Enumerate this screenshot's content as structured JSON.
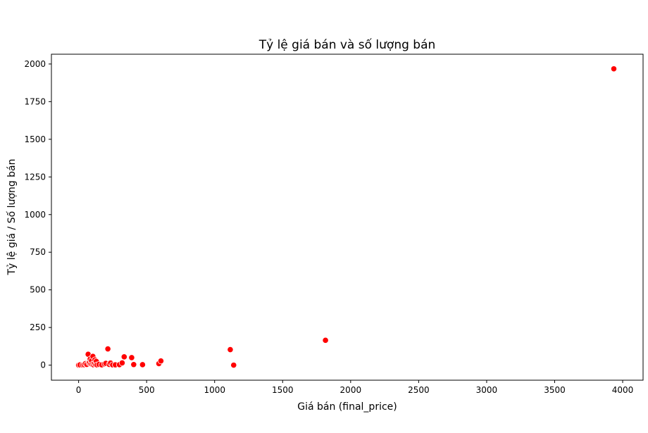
{
  "chart_data": {
    "type": "scatter",
    "title": "Tỷ lệ giá bán và số lượng bán",
    "xlabel": "Giá bán (final_price)",
    "ylabel": "Tỷ lệ giá / Số lượng bán",
    "xlim": [
      -200,
      4150
    ],
    "ylim": [
      -100,
      2065
    ],
    "xticks": [
      0,
      500,
      1000,
      1500,
      2000,
      2500,
      3000,
      3500,
      4000
    ],
    "yticks": [
      0,
      250,
      500,
      750,
      1000,
      1250,
      1500,
      1750,
      2000
    ],
    "grid": false,
    "marker_color": "#ff0000",
    "marker_edge_color": "#ffffff",
    "points": [
      {
        "x": 0,
        "y": 0
      },
      {
        "x": 10,
        "y": 2
      },
      {
        "x": 30,
        "y": 1
      },
      {
        "x": 40,
        "y": 3
      },
      {
        "x": 50,
        "y": 10
      },
      {
        "x": 60,
        "y": 5
      },
      {
        "x": 70,
        "y": 72
      },
      {
        "x": 75,
        "y": 15
      },
      {
        "x": 80,
        "y": 20
      },
      {
        "x": 85,
        "y": 40
      },
      {
        "x": 90,
        "y": 8
      },
      {
        "x": 95,
        "y": 30
      },
      {
        "x": 100,
        "y": 5
      },
      {
        "x": 105,
        "y": 58
      },
      {
        "x": 110,
        "y": 2
      },
      {
        "x": 115,
        "y": 12
      },
      {
        "x": 120,
        "y": 35
      },
      {
        "x": 125,
        "y": 3
      },
      {
        "x": 130,
        "y": 25
      },
      {
        "x": 135,
        "y": 2
      },
      {
        "x": 150,
        "y": 5
      },
      {
        "x": 170,
        "y": 2
      },
      {
        "x": 190,
        "y": 8
      },
      {
        "x": 200,
        "y": 12
      },
      {
        "x": 215,
        "y": 108
      },
      {
        "x": 225,
        "y": 5
      },
      {
        "x": 235,
        "y": 14
      },
      {
        "x": 250,
        "y": 2
      },
      {
        "x": 270,
        "y": 2
      },
      {
        "x": 300,
        "y": 3
      },
      {
        "x": 320,
        "y": 15
      },
      {
        "x": 335,
        "y": 55
      },
      {
        "x": 390,
        "y": 50
      },
      {
        "x": 405,
        "y": 4
      },
      {
        "x": 470,
        "y": 3
      },
      {
        "x": 590,
        "y": 10
      },
      {
        "x": 605,
        "y": 28
      },
      {
        "x": 1115,
        "y": 103
      },
      {
        "x": 1140,
        "y": 0
      },
      {
        "x": 1815,
        "y": 165
      },
      {
        "x": 3935,
        "y": 1968
      }
    ]
  }
}
